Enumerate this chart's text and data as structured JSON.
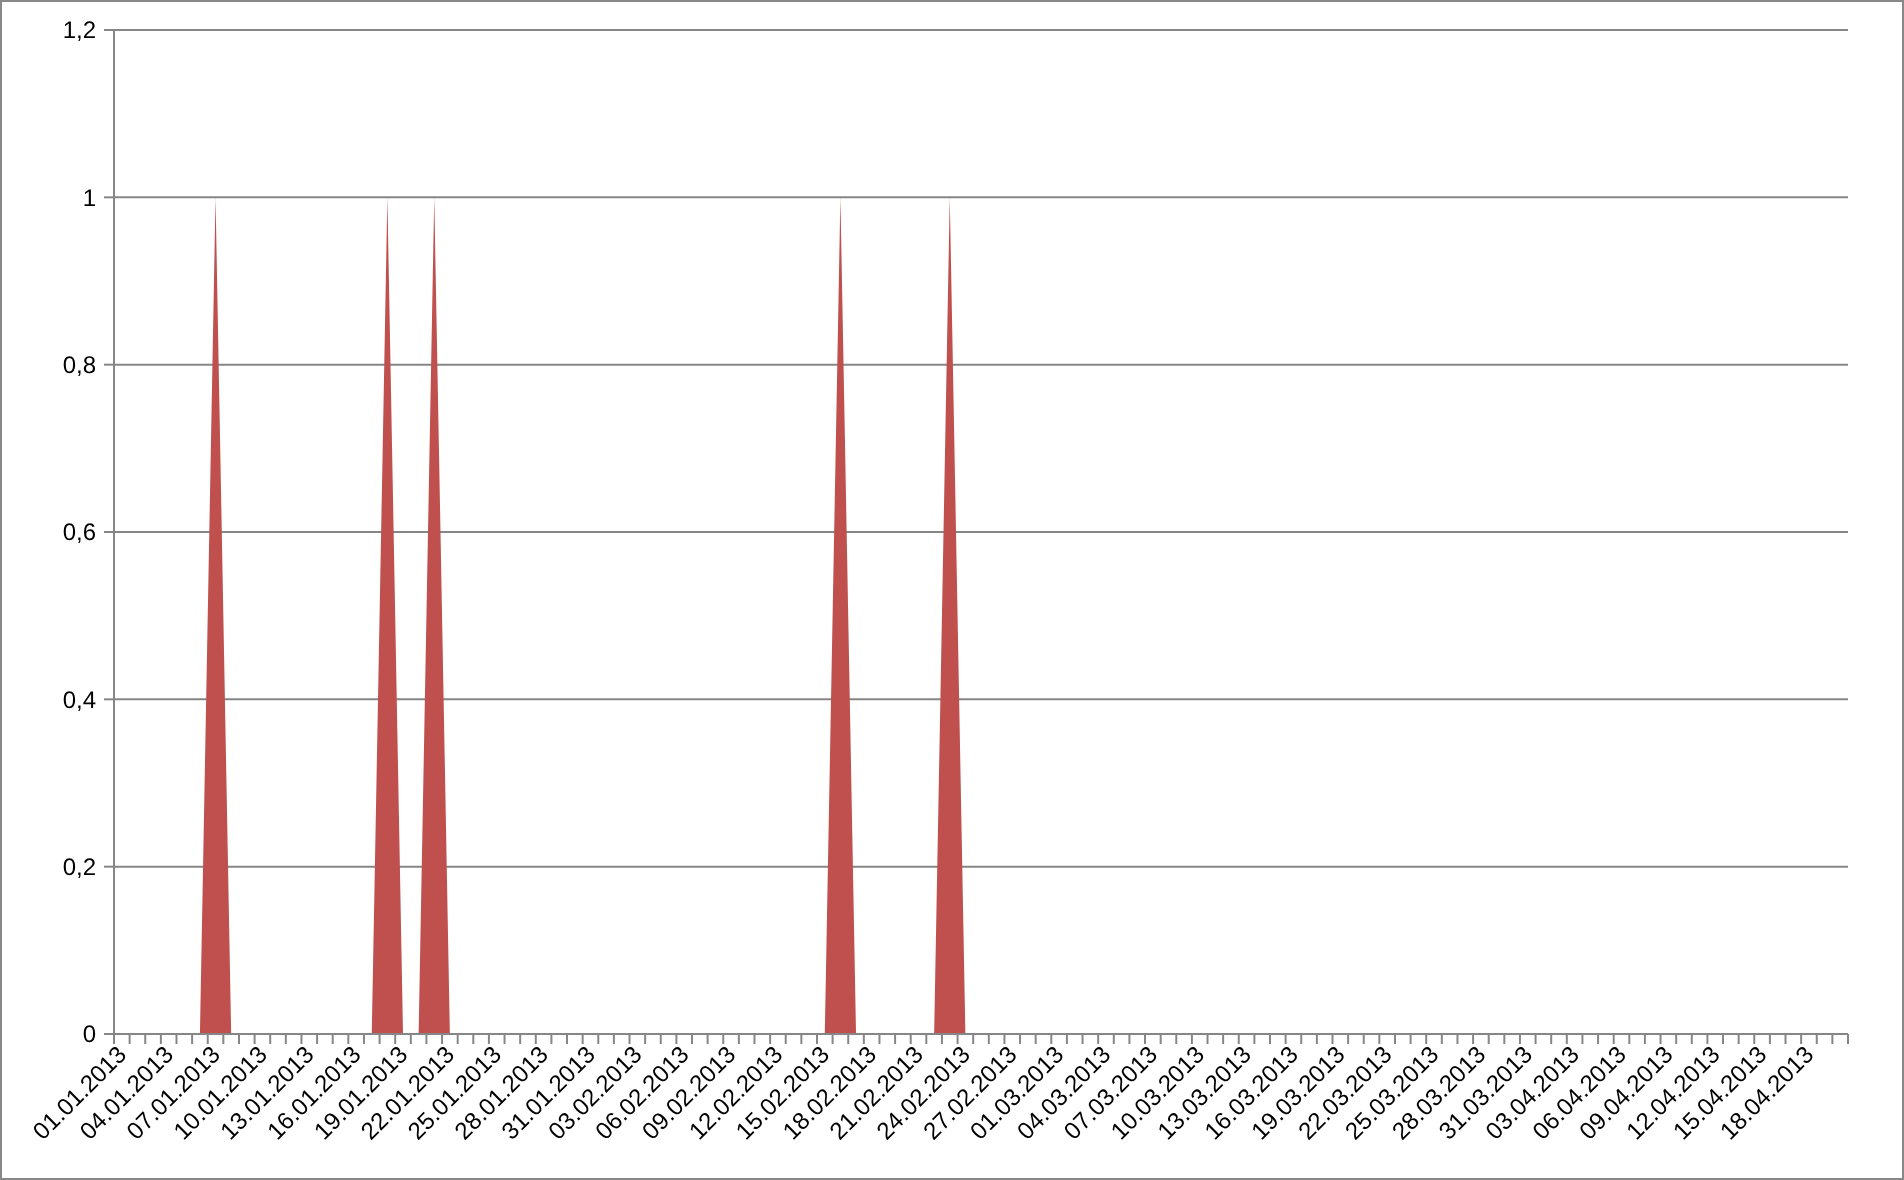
{
  "chart_data": {
    "type": "area",
    "color": "#c0504d",
    "categories": [
      "01.01.2013",
      null,
      null,
      "04.01.2013",
      null,
      null,
      "07.01.2013",
      null,
      null,
      "10.01.2013",
      null,
      null,
      "13.01.2013",
      null,
      null,
      "16.01.2013",
      null,
      null,
      "19.01.2013",
      null,
      null,
      "22.01.2013",
      null,
      null,
      "25.01.2013",
      null,
      null,
      "28.01.2013",
      null,
      null,
      "31.01.2013",
      null,
      null,
      "03.02.2013",
      null,
      null,
      "06.02.2013",
      null,
      null,
      "09.02.2013",
      null,
      null,
      "12.02.2013",
      null,
      null,
      "15.02.2013",
      null,
      null,
      "18.02.2013",
      null,
      null,
      "21.02.2013",
      null,
      null,
      "24.02.2013",
      null,
      null,
      "27.02.2013",
      null,
      null,
      "01.03.2013",
      null,
      null,
      "04.03.2013",
      null,
      null,
      "07.03.2013",
      null,
      null,
      "10.03.2013",
      null,
      null,
      "13.03.2013",
      null,
      null,
      "16.03.2013",
      null,
      null,
      "19.03.2013",
      null,
      null,
      "22.03.2013",
      null,
      null,
      "25.03.2013",
      null,
      null,
      "28.03.2013",
      null,
      null,
      "31.03.2013",
      null,
      null,
      "03.04.2013",
      null,
      null,
      "06.04.2013",
      null,
      null,
      "09.04.2013",
      null,
      null,
      "12.04.2013",
      null,
      null,
      "15.04.2013",
      null,
      null,
      "18.04.2013",
      null,
      null
    ],
    "values": [
      0,
      0,
      0,
      0,
      0,
      0,
      1,
      0,
      0,
      0,
      0,
      0,
      0,
      0,
      0,
      0,
      0,
      1,
      0,
      0,
      1,
      0,
      0,
      0,
      0,
      0,
      0,
      0,
      0,
      0,
      0,
      0,
      0,
      0,
      0,
      0,
      0,
      0,
      0,
      0,
      0,
      0,
      0,
      0,
      0,
      0,
      1,
      0,
      0,
      0,
      0,
      0,
      0,
      1,
      0,
      0,
      0,
      0,
      0,
      0,
      0,
      0,
      0,
      0,
      0,
      0,
      0,
      0,
      0,
      0,
      0,
      0,
      0,
      0,
      0,
      0,
      0,
      0,
      0,
      0,
      0,
      0,
      0,
      0,
      0,
      0,
      0,
      0,
      0,
      0,
      0,
      0,
      0,
      0,
      0,
      0,
      0,
      0,
      0,
      0,
      0,
      0,
      0,
      0,
      0,
      0,
      0,
      0,
      0,
      0,
      0
    ],
    "ylim": [
      0,
      1.2
    ],
    "yticks": [
      0,
      {
        "value": 0.2,
        "label": "0,2"
      },
      {
        "value": 0.4,
        "label": "0,4"
      },
      {
        "value": 0.6,
        "label": "0,6"
      },
      {
        "value": 0.8,
        "label": "0,8"
      },
      1,
      {
        "value": 1.2,
        "label": "1,2"
      }
    ],
    "grid": "y"
  }
}
